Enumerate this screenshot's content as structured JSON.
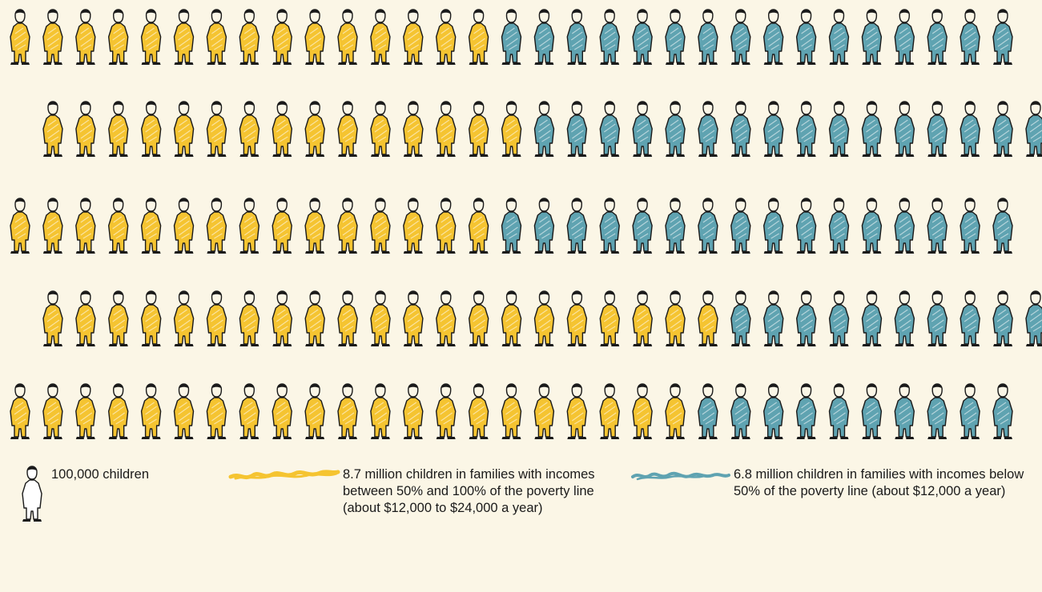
{
  "chart_data": {
    "type": "pictogram",
    "unit_value": 100000,
    "unit_label": "100,000 children",
    "rows": [
      {
        "yellow": 15,
        "blue": 16
      },
      {
        "yellow": 15,
        "blue": 16
      },
      {
        "yellow": 15,
        "blue": 16
      },
      {
        "yellow": 21,
        "blue": 10
      },
      {
        "yellow": 21,
        "blue": 10
      }
    ],
    "series": [
      {
        "key": "yellow",
        "label": "8.7 million children in families with incomes between 50% and 100% of the poverty line (about $12,000 to $24,000 a year)",
        "total_icons": 87,
        "color": "#f5c431"
      },
      {
        "key": "blue",
        "label": "6.8 million children in families with incomes below 50% of the poverty line (about $12,000 a year)",
        "total_icons": 68,
        "color": "#5fa3b1"
      }
    ]
  }
}
